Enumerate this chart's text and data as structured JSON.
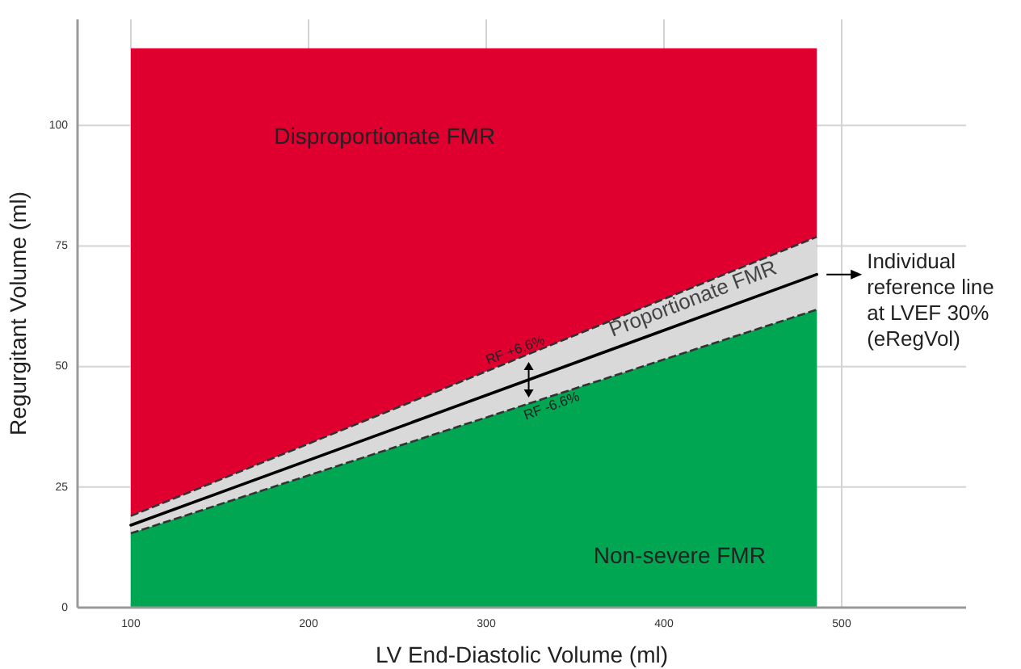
{
  "chart_data": {
    "type": "area",
    "xlabel": "LV End-Diastolic Volume (ml)",
    "ylabel": "Regurgitant Volume (ml)",
    "x": [
      100,
      486
    ],
    "xlim": [
      70,
      570
    ],
    "xticks": [
      100,
      200,
      300,
      400,
      500
    ],
    "ylim": [
      0,
      122
    ],
    "yticks": [
      0,
      25,
      50,
      75,
      100
    ],
    "grid": true,
    "series": [
      {
        "name": "Disproportionate FMR",
        "color": "#e0002f",
        "values": [
          116,
          116
        ]
      },
      {
        "name": "Proportionate FMR",
        "color": "#d9d9d9",
        "line_style": "dashed",
        "values": [
          19.0,
          76.9
        ]
      },
      {
        "name": "Non-severe FMR",
        "color": "#00a651",
        "line_style": "dashed",
        "values": [
          15.4,
          61.8
        ]
      },
      {
        "type": "line",
        "color": "#000000",
        "line_style": "solid",
        "values": [
          17.1,
          69.1
        ]
      }
    ],
    "annotations": [
      {
        "text": "RF +6.6%",
        "x": 318,
        "y": 51.7
      },
      {
        "text": "RF -6.6%",
        "x": 335,
        "y": 43.6
      },
      {
        "text": "Individual reference line at LVEF 30% (eRegVol)",
        "x": 486,
        "y": 69.1
      }
    ]
  }
}
